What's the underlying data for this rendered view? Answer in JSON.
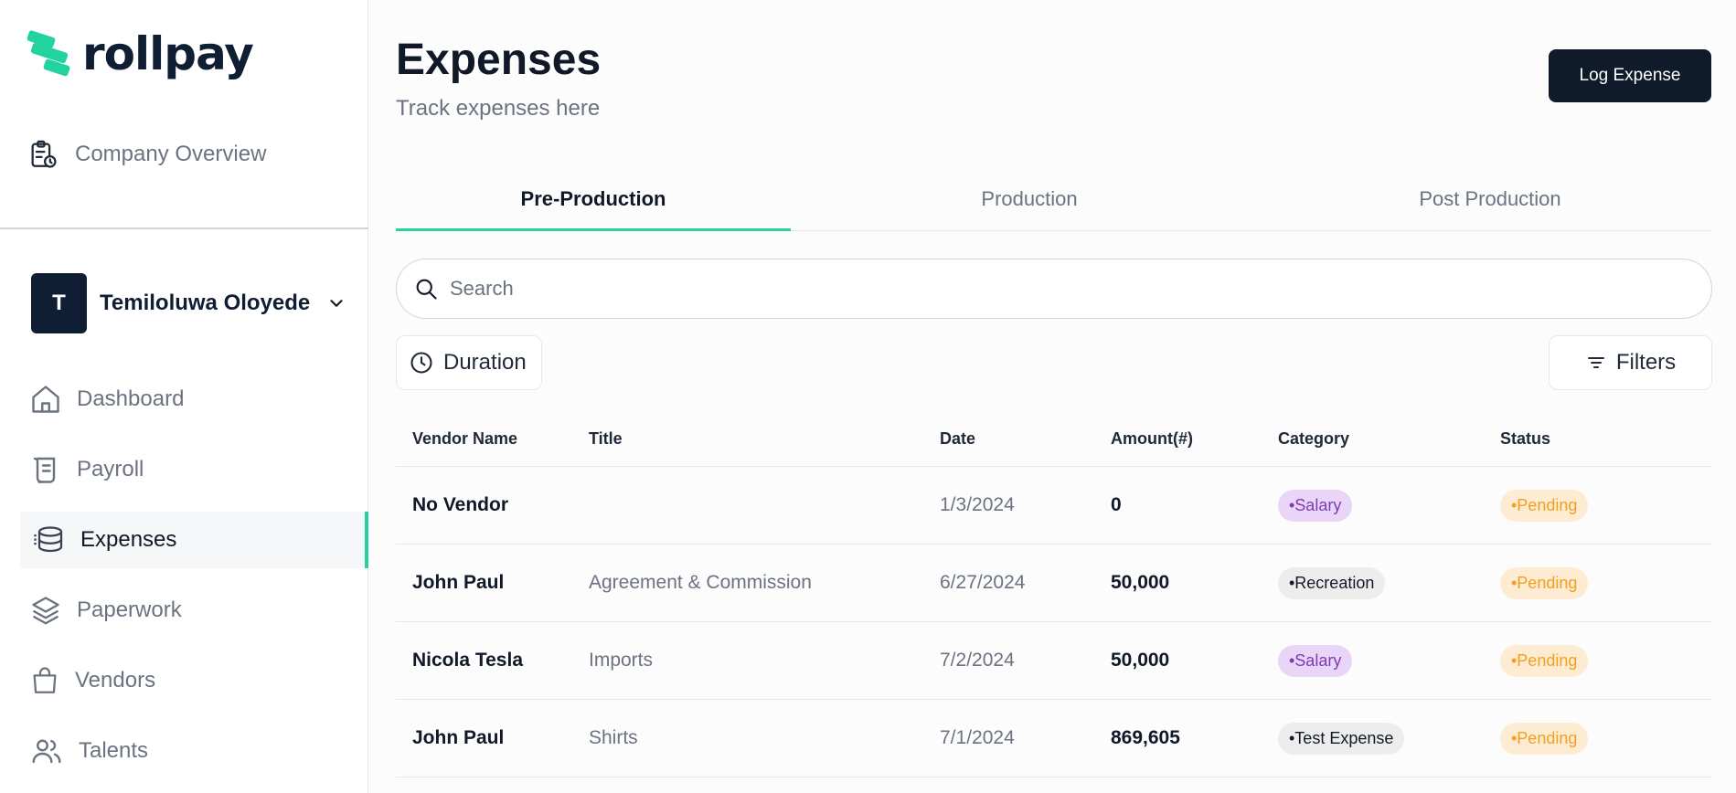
{
  "app": {
    "name": "rollpay"
  },
  "sidebar": {
    "company_overview": "Company Overview",
    "user": {
      "initial": "T",
      "name": "Temiloluwa Oloyede"
    },
    "items": [
      {
        "label": "Dashboard",
        "icon": "home-icon"
      },
      {
        "label": "Payroll",
        "icon": "scroll-icon"
      },
      {
        "label": "Expenses",
        "icon": "coins-icon",
        "active": true
      },
      {
        "label": "Paperwork",
        "icon": "layers-icon"
      },
      {
        "label": "Vendors",
        "icon": "shopping-bag-icon"
      },
      {
        "label": "Talents",
        "icon": "users-icon"
      }
    ]
  },
  "header": {
    "title": "Expenses",
    "subtitle": "Track expenses here",
    "action_label": "Log Expense"
  },
  "tabs": [
    {
      "label": "Pre-Production",
      "active": true
    },
    {
      "label": "Production"
    },
    {
      "label": "Post Production"
    }
  ],
  "search": {
    "placeholder": "Search"
  },
  "filters": {
    "duration_label": "Duration",
    "filters_label": "Filters"
  },
  "table": {
    "columns": [
      "Vendor Name",
      "Title",
      "Date",
      "Amount(#)",
      "Category",
      "Status"
    ],
    "rows": [
      {
        "vendor": "No Vendor",
        "title": "",
        "date": "1/3/2024",
        "amount": "0",
        "category": "•Salary",
        "status": "•Pending"
      },
      {
        "vendor": "John Paul",
        "title": "Agreement & Commission",
        "date": "6/27/2024",
        "amount": "50,000",
        "category": "•Recreation",
        "status": "•Pending"
      },
      {
        "vendor": "Nicola Tesla",
        "title": "Imports",
        "date": "7/2/2024",
        "amount": "50,000",
        "category": "•Salary",
        "status": "•Pending"
      },
      {
        "vendor": "John Paul",
        "title": "Shirts",
        "date": "7/1/2024",
        "amount": "869,605",
        "category": "•Test Expense",
        "status": "•Pending"
      }
    ]
  },
  "colors": {
    "accent": "#22d3a0",
    "navy": "#0f1e33",
    "salary_badge": "#e9d5f7",
    "pending_badge": "#fdecd2"
  }
}
